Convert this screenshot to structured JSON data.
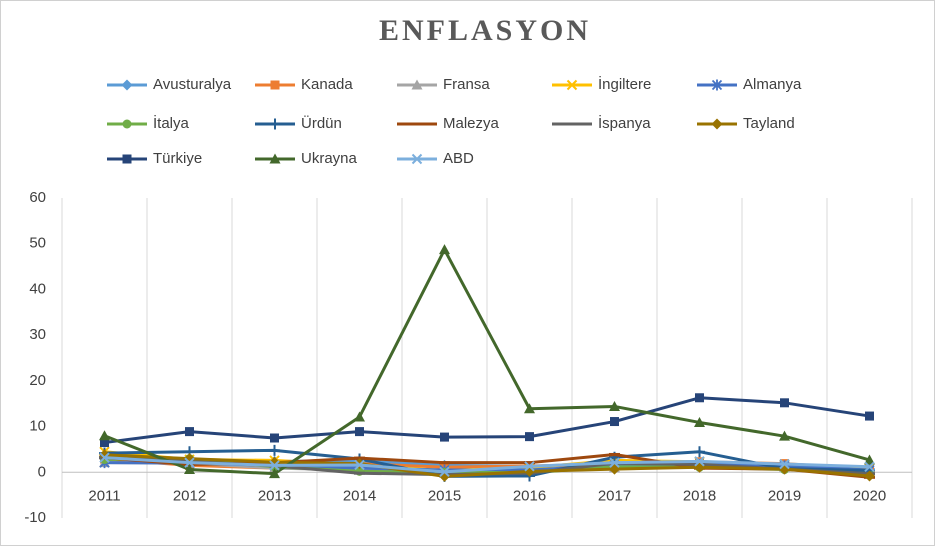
{
  "chart_data": {
    "type": "line",
    "title": "ENFLASYON",
    "categories": [
      "2011",
      "2012",
      "2013",
      "2014",
      "2015",
      "2016",
      "2017",
      "2018",
      "2019",
      "2020"
    ],
    "ylim": [
      -10,
      60
    ],
    "yticks": [
      -10,
      0,
      10,
      20,
      30,
      40,
      50,
      60
    ],
    "series": [
      {
        "name": "Avusturalya",
        "color": "#5b9bd5",
        "marker": "diamond",
        "values": [
          3.3,
          1.8,
          2.4,
          2.5,
          1.5,
          1.3,
          2.0,
          1.9,
          1.6,
          0.8
        ]
      },
      {
        "name": "Kanada",
        "color": "#ed7d31",
        "marker": "square",
        "values": [
          2.9,
          1.5,
          0.9,
          1.9,
          1.1,
          1.4,
          1.6,
          2.3,
          1.9,
          0.7
        ]
      },
      {
        "name": "Fransa",
        "color": "#a5a5a5",
        "marker": "triangle",
        "values": [
          2.1,
          2.0,
          0.9,
          0.5,
          0.0,
          0.2,
          1.0,
          1.9,
          1.1,
          0.5
        ]
      },
      {
        "name": "İngiltere",
        "color": "#ffc000",
        "marker": "x",
        "values": [
          4.5,
          2.8,
          2.6,
          1.5,
          0.4,
          1.0,
          2.6,
          2.3,
          1.7,
          1.0
        ]
      },
      {
        "name": "Almanya",
        "color": "#4472c4",
        "marker": "star",
        "values": [
          2.1,
          2.0,
          1.5,
          0.9,
          0.5,
          0.5,
          1.5,
          1.7,
          1.4,
          0.5
        ]
      },
      {
        "name": "İtalya",
        "color": "#70ad47",
        "marker": "circle",
        "values": [
          2.8,
          3.0,
          1.2,
          0.2,
          0.0,
          -0.1,
          1.2,
          1.1,
          0.6,
          -0.1
        ]
      },
      {
        "name": "Ürdün",
        "color": "#255e91",
        "marker": "plus",
        "values": [
          4.2,
          4.5,
          4.8,
          2.9,
          -0.9,
          -0.8,
          3.3,
          4.5,
          0.8,
          0.4
        ]
      },
      {
        "name": "Malezya",
        "color": "#9e480e",
        "marker": "dash",
        "values": [
          3.2,
          1.7,
          2.1,
          3.1,
          2.1,
          2.1,
          3.9,
          0.9,
          0.7,
          -1.1
        ]
      },
      {
        "name": "İspanya",
        "color": "#636363",
        "marker": "dash",
        "values": [
          3.2,
          2.4,
          1.4,
          -0.2,
          -0.5,
          -0.2,
          2.0,
          1.7,
          0.7,
          -0.3
        ]
      },
      {
        "name": "Tayland",
        "color": "#997300",
        "marker": "diamond",
        "values": [
          3.8,
          3.0,
          2.2,
          1.9,
          -0.9,
          0.2,
          0.7,
          1.1,
          0.7,
          -0.8
        ]
      },
      {
        "name": "Türkiye",
        "color": "#264478",
        "marker": "square",
        "values": [
          6.5,
          8.9,
          7.5,
          8.9,
          7.7,
          7.8,
          11.1,
          16.3,
          15.2,
          12.3
        ]
      },
      {
        "name": "Ukrayna",
        "color": "#43682b",
        "marker": "triangle",
        "values": [
          8.0,
          0.6,
          -0.3,
          12.1,
          48.7,
          13.9,
          14.4,
          10.9,
          7.9,
          2.7
        ]
      },
      {
        "name": "ABD",
        "color": "#7cafdd",
        "marker": "x",
        "values": [
          3.2,
          2.1,
          1.5,
          1.6,
          0.1,
          1.3,
          2.1,
          2.4,
          1.8,
          1.2
        ]
      }
    ]
  }
}
